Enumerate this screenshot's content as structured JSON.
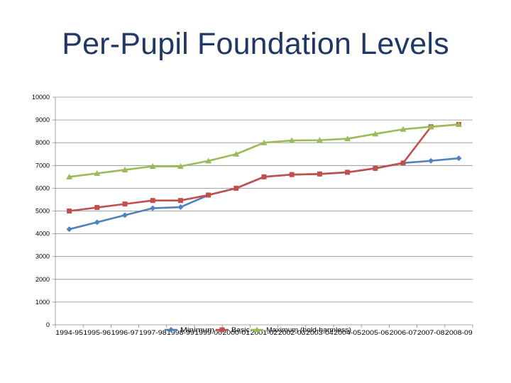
{
  "slide": {
    "title": "Per-Pupil Foundation Levels"
  },
  "chart_data": {
    "type": "line",
    "categories": [
      "1994-95",
      "1995-96",
      "1996-97",
      "1997-98",
      "1998-99",
      "1999-00",
      "2000-01",
      "2001-02",
      "2002-03",
      "2003-04",
      "2004-05",
      "2005-06",
      "2006-07",
      "2007-08",
      "2008-09"
    ],
    "series": [
      {
        "name": "Minimum",
        "color": "#4f81bd",
        "marker": "diamond",
        "values": [
          4200,
          4506,
          4816,
          5124,
          5170,
          5700,
          6000,
          6500,
          6600,
          6626,
          6700,
          6875,
          7108,
          7204,
          7316
        ]
      },
      {
        "name": "Basic",
        "color": "#c0504d",
        "marker": "square",
        "values": [
          5000,
          5153,
          5308,
          5462,
          5462,
          5700,
          6000,
          6500,
          6600,
          6626,
          6700,
          6875,
          7108,
          8700,
          8800
        ]
      },
      {
        "name": "Maximum (hold-harmless)",
        "color": "#9bbb59",
        "marker": "triangle",
        "values": [
          6500,
          6653,
          6808,
          6962,
          6962,
          7200,
          7500,
          8000,
          8100,
          8111,
          8175,
          8385,
          8590,
          8700,
          8800
        ]
      }
    ],
    "ylim": [
      0,
      10000
    ],
    "yticks": [
      0,
      1000,
      2000,
      3000,
      4000,
      5000,
      6000,
      7000,
      8000,
      9000,
      10000
    ],
    "grid": true,
    "legend": "bottom"
  }
}
